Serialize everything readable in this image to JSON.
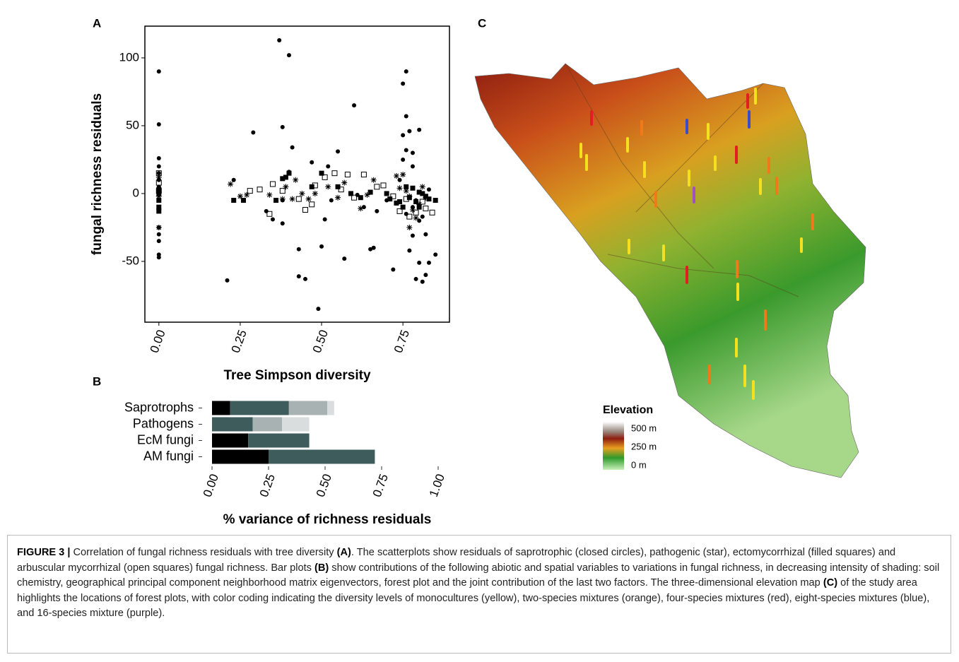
{
  "chart_data": [
    {
      "type": "scatter",
      "panel_label": "A",
      "xlabel": "Tree Simpson diversity",
      "ylabel": "fungal richness residuals",
      "xlim": [
        -0.043,
        0.893
      ],
      "ylim": [
        -94.8,
        123.4
      ],
      "xticks": [
        {
          "value": 0,
          "label": "0.00"
        },
        {
          "value": 0.25,
          "label": "0.25"
        },
        {
          "value": 0.5,
          "label": "0.50"
        },
        {
          "value": 0.75,
          "label": "0.75"
        }
      ],
      "yticks": [
        -50,
        0,
        50,
        100
      ],
      "series": [
        {
          "marker": "circle",
          "color": "#000000",
          "x": [
            0,
            0,
            0,
            0,
            0,
            0,
            0,
            0,
            0,
            0,
            0,
            0,
            0,
            0,
            0,
            0.21,
            0.23,
            0.29,
            0.33,
            0.35,
            0.37,
            0.38,
            0.38,
            0.4,
            0.41,
            0.4,
            0.43,
            0.43,
            0.45,
            0.5,
            0.49,
            0.51,
            0.52,
            0.55,
            0.57,
            0.6,
            0.63,
            0.65,
            0.66,
            0.67,
            0.7,
            0.72,
            0.75,
            0.76,
            0.75,
            0.76,
            0.77,
            0.78,
            0.78,
            0.8,
            0.81,
            0.82,
            0.78,
            0.79,
            0.81,
            0.82,
            0.83,
            0.85,
            0.8,
            0.77,
            0.75,
            0.76,
            0.74,
            0.78,
            0.8,
            0.47,
            0.38,
            0.53,
            0.61,
            0.76,
            0.79,
            0.83
          ],
          "values": [
            90,
            51,
            26,
            20,
            15,
            10,
            5,
            0,
            -5,
            -10,
            -25,
            -30,
            -35,
            -45,
            -47,
            -64,
            10,
            45,
            -13,
            -19,
            113,
            49,
            -22,
            102,
            34,
            16,
            -41,
            -61,
            -63,
            -39,
            -85,
            -19,
            20,
            31,
            -48,
            65,
            -10,
            -41,
            -40,
            -13,
            -5,
            -56,
            81,
            90,
            43,
            57,
            46,
            30,
            20,
            47,
            -17,
            -30,
            -31,
            -63,
            -65,
            -60,
            -51,
            -45,
            -51,
            -42,
            25,
            32,
            10,
            -10,
            -20,
            23,
            -5,
            -5,
            -1,
            -15,
            -5,
            3
          ]
        },
        {
          "marker": "star",
          "color": "#000000",
          "x": [
            0,
            0,
            0,
            0.22,
            0.25,
            0.27,
            0.34,
            0.38,
            0.39,
            0.41,
            0.42,
            0.44,
            0.46,
            0.48,
            0.52,
            0.55,
            0.57,
            0.62,
            0.64,
            0.66,
            0.73,
            0.75,
            0.76,
            0.78,
            0.8,
            0.82,
            0.77,
            0.79,
            0.74,
            0.77,
            0.81
          ],
          "values": [
            -25,
            12,
            -2,
            7,
            -2,
            -1,
            -1,
            -4,
            5,
            -4,
            10,
            0,
            -4,
            0,
            5,
            -3,
            8,
            -11,
            -1,
            10,
            13,
            14,
            2,
            -12,
            -8,
            -3,
            -25,
            -18,
            4,
            -2,
            5
          ]
        },
        {
          "marker": "square-filled",
          "color": "#000000",
          "x": [
            0,
            0,
            0,
            0,
            0,
            0.23,
            0.26,
            0.36,
            0.38,
            0.39,
            0.4,
            0.47,
            0.5,
            0.55,
            0.59,
            0.62,
            0.65,
            0.7,
            0.71,
            0.73,
            0.76,
            0.77,
            0.79,
            0.8,
            0.81,
            0.83,
            0.85,
            0.74,
            0.78,
            0.82,
            0.75,
            0.8
          ],
          "values": [
            0,
            -5,
            -13,
            -10,
            3,
            -5,
            -5,
            -5,
            11,
            12,
            15,
            5,
            15,
            5,
            0,
            -3,
            1,
            0,
            -4,
            -7,
            5,
            -3,
            -6,
            1,
            0,
            -4,
            -5,
            -6,
            4,
            -2,
            -10,
            -10
          ]
        },
        {
          "marker": "square-open",
          "color": "#000000",
          "x": [
            0,
            0,
            0,
            0.28,
            0.31,
            0.34,
            0.35,
            0.38,
            0.43,
            0.45,
            0.48,
            0.51,
            0.54,
            0.56,
            0.58,
            0.6,
            0.63,
            0.67,
            0.69,
            0.72,
            0.74,
            0.77,
            0.79,
            0.82,
            0.84,
            0.76,
            0.81,
            0.47
          ],
          "values": [
            15,
            8,
            2,
            2,
            3,
            -15,
            7,
            2,
            -4,
            -12,
            6,
            12,
            15,
            3,
            14,
            -3,
            14,
            5,
            6,
            -2,
            -13,
            -17,
            -14,
            -11,
            -14,
            -4,
            -6,
            -8
          ]
        }
      ]
    },
    {
      "type": "bar",
      "orientation": "horizontal",
      "stacked": true,
      "panel_label": "B",
      "xlabel": "% variance of richness residuals",
      "categories": [
        "Saprotrophs",
        "Pathogens",
        "EcM fungi",
        "AM fungi"
      ],
      "xlim": [
        0,
        1
      ],
      "xticks": [
        {
          "value": 0,
          "label": "0.00"
        },
        {
          "value": 0.25,
          "label": "0.25"
        },
        {
          "value": 0.5,
          "label": "0.50"
        },
        {
          "value": 0.75,
          "label": "0.75"
        },
        {
          "value": 1,
          "label": "1.00"
        }
      ],
      "series": [
        {
          "color": "#000000",
          "values": [
            0.08,
            0,
            0.16,
            0.25
          ]
        },
        {
          "color": "#3f5c5c",
          "values": [
            0.26,
            0.18,
            0.27,
            0.47
          ]
        },
        {
          "color": "#a9b2b2",
          "values": [
            0.17,
            0.13,
            0,
            0
          ]
        },
        {
          "color": "#dadddd",
          "values": [
            0.03,
            0.12,
            0,
            0
          ]
        }
      ]
    }
  ],
  "map": {
    "panel_label": "C",
    "legend": {
      "title": "Elevation",
      "labels": [
        "500 m",
        "250 m",
        "0 m"
      ]
    }
  },
  "caption": {
    "runs": [
      {
        "text": "FIGURE 3 |",
        "bold": true
      },
      {
        "text": " Correlation of fungal richness residuals with tree diversity ",
        "bold": false
      },
      {
        "text": "(A)",
        "bold": true
      },
      {
        "text": ". The scatterplots show residuals of saprotrophic (closed circles), pathogenic (star), ectomycorrhizal (filled squares) and arbuscular mycorrhizal (open squares) fungal richness. Bar plots ",
        "bold": false
      },
      {
        "text": "(B)",
        "bold": true
      },
      {
        "text": " show contributions of the following abiotic and spatial variables to variations in fungal richness, in decreasing intensity of shading: soil chemistry, geographical principal component neighborhood matrix eigenvectors, forest plot and the joint contribution of the last two factors. The three-dimensional elevation map ",
        "bold": false
      },
      {
        "text": "(C)",
        "bold": true
      },
      {
        "text": " of the study area highlights the locations of forest plots, with color coding indicating the diversity levels of monocultures (yellow), two-species mixtures (orange), four-species mixtures (red), eight-species mixtures (blue), and 16-species mixture (purple).",
        "bold": false
      }
    ]
  }
}
